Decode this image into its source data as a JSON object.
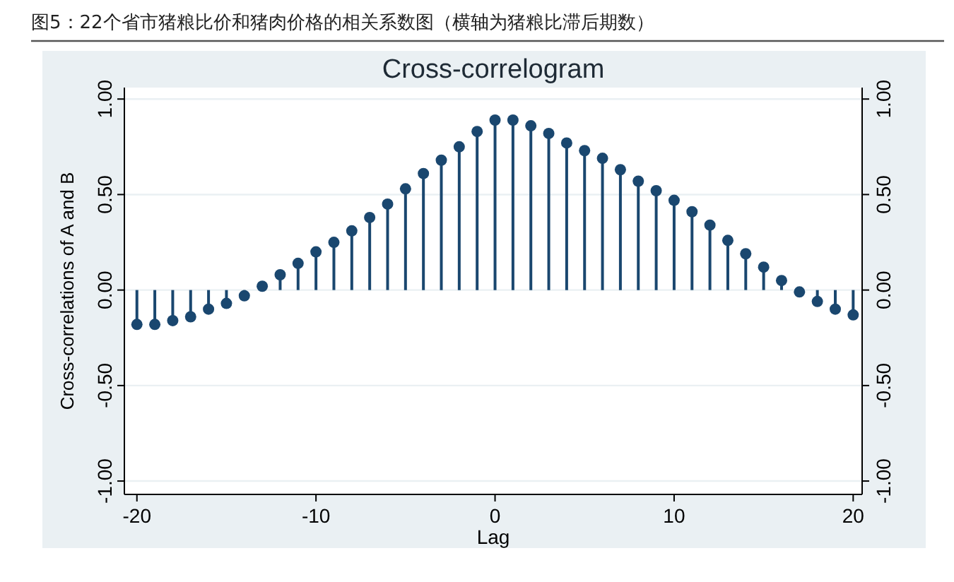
{
  "chart_data": {
    "type": "lollipop",
    "title": "图5：22个省市猪粮比价和猪肉价格的相关系数图（横轴为猪粮比滞后期数）",
    "subtitle": "Cross-correlogram",
    "xlabel": "Lag",
    "ylabel": "Cross-correlations of A and B",
    "x": [
      -20,
      -19,
      -18,
      -17,
      -16,
      -15,
      -14,
      -13,
      -12,
      -11,
      -10,
      -9,
      -8,
      -7,
      -6,
      -5,
      -4,
      -3,
      -2,
      -1,
      0,
      1,
      2,
      3,
      4,
      5,
      6,
      7,
      8,
      9,
      10,
      11,
      12,
      13,
      14,
      15,
      16,
      17,
      18,
      19,
      20
    ],
    "values": [
      -0.18,
      -0.18,
      -0.16,
      -0.14,
      -0.1,
      -0.07,
      -0.03,
      0.02,
      0.08,
      0.14,
      0.2,
      0.25,
      0.31,
      0.38,
      0.45,
      0.53,
      0.61,
      0.68,
      0.75,
      0.83,
      0.89,
      0.89,
      0.86,
      0.82,
      0.77,
      0.73,
      0.69,
      0.63,
      0.57,
      0.52,
      0.47,
      0.41,
      0.34,
      0.26,
      0.19,
      0.12,
      0.05,
      -0.01,
      -0.06,
      -0.1,
      -0.13
    ],
    "color": "#1a476f",
    "marker": "circle",
    "grid": "y",
    "xlim": [
      -20.7,
      20.5
    ],
    "xticks": [
      -20,
      -10,
      0,
      10,
      20
    ],
    "ylim": [
      -1.07,
      1.06
    ],
    "yticks": [
      {
        "value": -1,
        "label": "-1.00"
      },
      {
        "value": -0.5,
        "label": "-0.50"
      },
      {
        "value": 0,
        "label": "0.00"
      },
      {
        "value": 0.5,
        "label": "0.50"
      },
      {
        "value": 1,
        "label": "1.00"
      }
    ],
    "y2lim": [
      -1.07,
      1.06
    ],
    "y2ticks": [
      {
        "value": -1,
        "label": "-1.00"
      },
      {
        "value": -0.5,
        "label": "-0.50"
      },
      {
        "value": 0,
        "label": "0.00"
      },
      {
        "value": 0.5,
        "label": "0.50"
      },
      {
        "value": 1,
        "label": "1.00"
      }
    ]
  }
}
